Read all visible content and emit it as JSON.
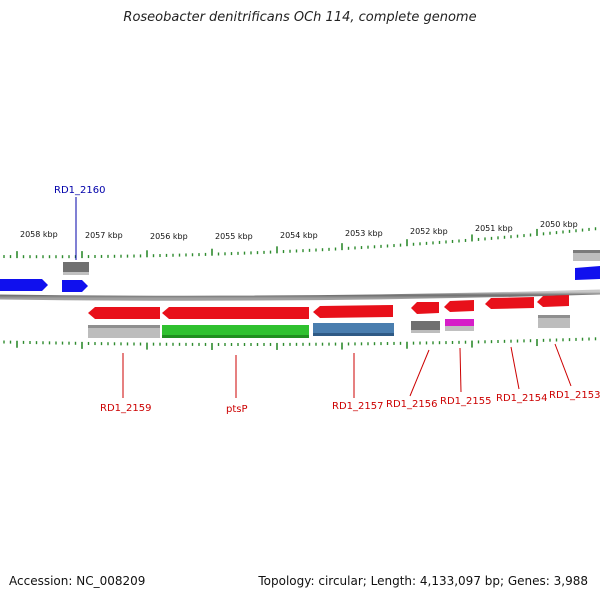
{
  "title": "Roseobacter denitrificans OCh 114, complete genome",
  "footer": {
    "accession": "Accession: NC_008209",
    "summary": "Topology: circular; Length: 4,133,097 bp; Genes: 3,988"
  },
  "scale": {
    "ticks": [
      "2058 kbp",
      "2057 kbp",
      "2056 kbp",
      "2055 kbp",
      "2054 kbp",
      "2053 kbp",
      "2052 kbp",
      "2051 kbp",
      "2050 kbp"
    ]
  },
  "colors": {
    "backbone": "#8a8a8a",
    "tick": "#2e8b2e",
    "gene_red": "#e8101a",
    "gene_blue": "#1010ee",
    "gene_gray": "#707070",
    "gene_lightgray": "#bdbdbd",
    "gene_green": "#2fc12f",
    "gene_steelblue": "#4a7eaf",
    "gene_magenta": "#d61ec8",
    "label_red": "#cc0000",
    "label_blue": "#0000aa"
  },
  "genes": [
    {
      "label": "RD1_2160",
      "strand": "forward",
      "color": "blue"
    },
    {
      "label": "RD1_2159",
      "strand": "reverse",
      "color": "red"
    },
    {
      "label": "ptsP",
      "strand": "reverse",
      "color": "red"
    },
    {
      "label": "RD1_2157",
      "strand": "reverse",
      "color": "red"
    },
    {
      "label": "RD1_2156",
      "strand": "reverse",
      "color": "red"
    },
    {
      "label": "RD1_2155",
      "strand": "reverse",
      "color": "red"
    },
    {
      "label": "RD1_2154",
      "strand": "reverse",
      "color": "red"
    },
    {
      "label": "RD1_2153",
      "strand": "reverse",
      "color": "red"
    }
  ]
}
